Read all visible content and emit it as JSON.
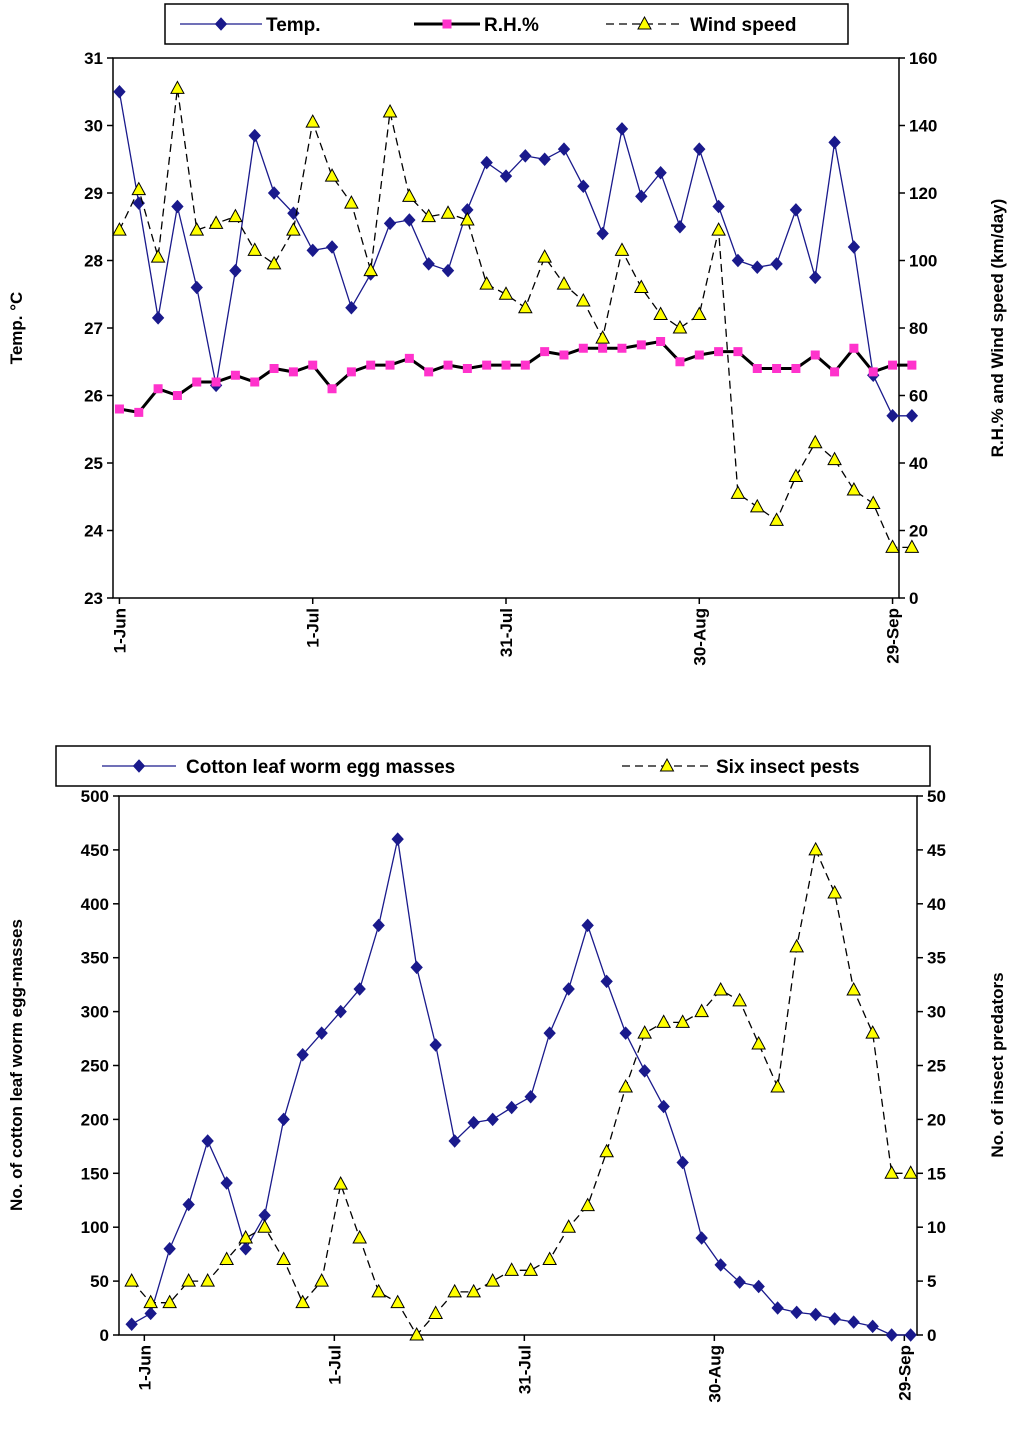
{
  "chart_data": [
    {
      "type": "line",
      "x_ticks": [
        "1-Jun",
        "1-Jul",
        "31-Jul",
        "30-Aug",
        "29-Sep"
      ],
      "ylabel_left": "Temp. °C",
      "ylabel_right": "R.H.% and Wind speed (km/day)",
      "ylim_left": [
        23,
        31
      ],
      "ylim_right": [
        0,
        160
      ],
      "yticks_left": [
        23,
        24,
        25,
        26,
        27,
        28,
        29,
        30,
        31
      ],
      "yticks_right": [
        0,
        20,
        40,
        60,
        80,
        100,
        120,
        140,
        160
      ],
      "legend_position": "top",
      "series": [
        {
          "name": "Temp.",
          "axis": "left",
          "color": "#1a1a8c",
          "marker": "diamond",
          "line": "solid",
          "x": [
            0,
            3,
            6,
            9,
            12,
            15,
            18,
            21,
            24,
            27,
            30,
            33,
            36,
            39,
            42,
            45,
            48,
            51,
            54,
            57,
            60,
            63,
            66,
            69,
            72,
            75,
            78,
            81,
            84,
            87,
            90,
            93,
            96,
            99,
            102,
            105,
            108,
            111,
            114,
            117,
            120,
            123
          ],
          "values": [
            30.5,
            28.85,
            27.15,
            28.8,
            27.6,
            26.15,
            27.85,
            29.85,
            29.0,
            28.7,
            28.15,
            28.2,
            27.3,
            27.8,
            28.55,
            28.6,
            27.95,
            27.85,
            28.75,
            29.45,
            29.25,
            29.55,
            29.5,
            29.65,
            29.1,
            28.4,
            29.95,
            28.95,
            29.3,
            28.5,
            29.65,
            28.8,
            28.0,
            27.9,
            27.95,
            28.75,
            27.75,
            29.75,
            28.2,
            26.3,
            25.7,
            25.7
          ]
        },
        {
          "name": "R.H.%",
          "axis": "right",
          "color": "#000000",
          "marker": "square",
          "marker_color": "#ff33cc",
          "line": "solid-thick",
          "x": [
            0,
            3,
            6,
            9,
            12,
            15,
            18,
            21,
            24,
            27,
            30,
            33,
            36,
            39,
            42,
            45,
            48,
            51,
            54,
            57,
            60,
            63,
            66,
            69,
            72,
            75,
            78,
            81,
            84,
            87,
            90,
            93,
            96,
            99,
            102,
            105,
            108,
            111,
            114,
            117,
            120,
            123
          ],
          "values": [
            56,
            55,
            62,
            60,
            64,
            64,
            66,
            64,
            68,
            67,
            69,
            62,
            67,
            69,
            69,
            71,
            67,
            69,
            68,
            69,
            69,
            69,
            73,
            72,
            74,
            74,
            74,
            75,
            76,
            70,
            72,
            73,
            73,
            68,
            68,
            68,
            72,
            67,
            74,
            67,
            69,
            69
          ]
        },
        {
          "name": "Wind speed",
          "axis": "right",
          "color": "#000000",
          "marker": "triangle",
          "marker_color": "#ffff00",
          "line": "dashed",
          "x": [
            0,
            3,
            6,
            9,
            12,
            15,
            18,
            21,
            24,
            27,
            30,
            33,
            36,
            39,
            42,
            45,
            48,
            51,
            54,
            57,
            60,
            63,
            66,
            69,
            72,
            75,
            78,
            81,
            84,
            87,
            90,
            93,
            96,
            99,
            102,
            105,
            108,
            111,
            114,
            117,
            120,
            123
          ],
          "values": [
            109,
            121,
            101,
            151,
            109,
            111,
            113,
            103,
            99,
            109,
            141,
            125,
            117,
            97,
            144,
            119,
            113,
            114,
            112,
            93,
            90,
            86,
            101,
            93,
            88,
            77,
            103,
            92,
            84,
            80,
            84,
            109,
            31,
            27,
            23,
            36,
            46,
            41,
            32,
            28,
            15,
            15
          ]
        }
      ]
    },
    {
      "type": "line",
      "x_ticks": [
        "1-Jun",
        "1-Jul",
        "31-Jul",
        "30-Aug",
        "29-Sep"
      ],
      "ylabel_left": "No. of cotton leaf worm egg-masses",
      "ylabel_right": "No. of insect predators",
      "ylim_left": [
        0,
        500
      ],
      "ylim_right": [
        0,
        50
      ],
      "yticks_left": [
        0,
        50,
        100,
        150,
        200,
        250,
        300,
        350,
        400,
        450,
        500
      ],
      "yticks_right": [
        0,
        5,
        10,
        15,
        20,
        25,
        30,
        35,
        40,
        45,
        50
      ],
      "legend_position": "top",
      "series": [
        {
          "name": "Cotton leaf worm egg masses",
          "axis": "left",
          "color": "#1a1a8c",
          "marker": "diamond",
          "line": "solid",
          "x": [
            -2,
            1,
            4,
            7,
            10,
            13,
            16,
            19,
            22,
            25,
            28,
            31,
            34,
            37,
            40,
            43,
            46,
            49,
            52,
            55,
            58,
            61,
            64,
            67,
            70,
            73,
            76,
            79,
            82,
            85,
            88,
            91,
            94,
            97,
            100,
            103,
            106,
            109,
            112,
            115,
            118,
            121
          ],
          "values": [
            10,
            20,
            80,
            121,
            180,
            141,
            80,
            111,
            200,
            260,
            280,
            300,
            321,
            380,
            460,
            341,
            269,
            180,
            197,
            200,
            211,
            221,
            280,
            321,
            380,
            328,
            280,
            245,
            212,
            160,
            90,
            65,
            49,
            45,
            25,
            21,
            19,
            15,
            12,
            8,
            0,
            0
          ]
        },
        {
          "name": "Six insect pests",
          "axis": "right",
          "color": "#000000",
          "marker": "triangle",
          "marker_color": "#ffff00",
          "line": "dashed",
          "x": [
            -2,
            1,
            4,
            7,
            10,
            13,
            16,
            19,
            22,
            25,
            28,
            31,
            34,
            37,
            40,
            43,
            46,
            49,
            52,
            55,
            58,
            61,
            64,
            67,
            70,
            73,
            76,
            79,
            82,
            85,
            88,
            91,
            94,
            97,
            100,
            103,
            106,
            109,
            112,
            115,
            118,
            121
          ],
          "values": [
            5,
            3,
            3,
            5,
            5,
            7,
            9,
            10,
            7,
            3,
            5,
            14,
            9,
            4,
            3,
            0,
            2,
            4,
            4,
            5,
            6,
            6,
            7,
            10,
            12,
            17,
            23,
            28,
            29,
            29,
            30,
            32,
            31,
            27,
            23,
            36,
            45,
            41,
            32,
            28,
            15,
            15
          ]
        }
      ]
    }
  ]
}
